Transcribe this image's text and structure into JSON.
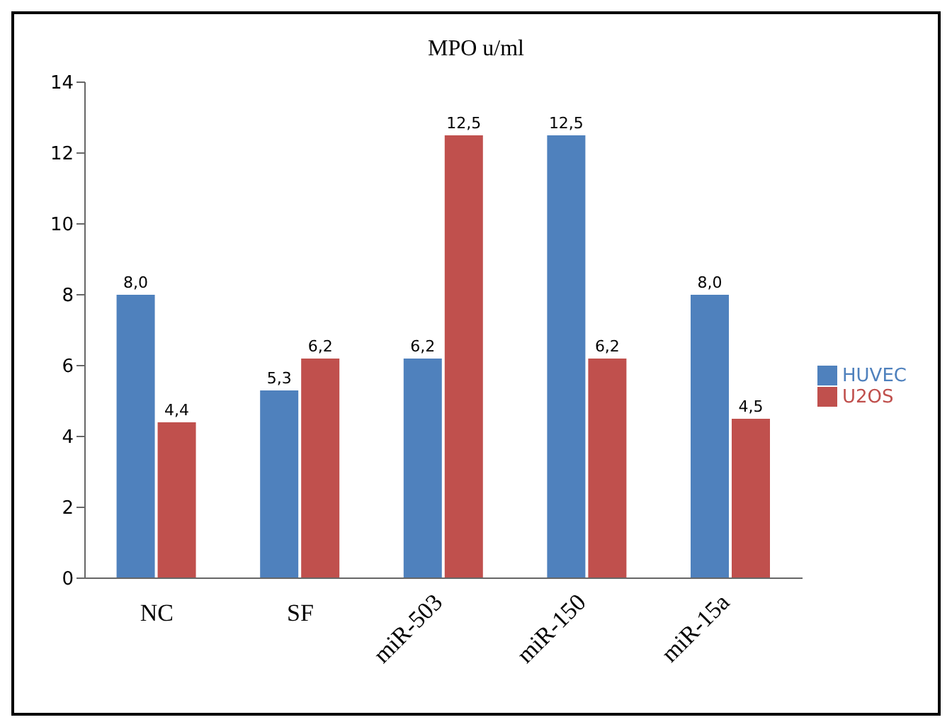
{
  "chart_data": {
    "type": "bar",
    "title": "MPO u/ml",
    "categories": [
      "NC",
      "SF",
      "miR-503",
      "miR-150",
      "miR-15a"
    ],
    "series": [
      {
        "name": "HUVEC",
        "color": "#4f81bd",
        "values": [
          8.0,
          5.3,
          6.2,
          12.5,
          8.0
        ],
        "value_labels": [
          "8,0",
          "5,3",
          "6,2",
          "12,5",
          "8,0"
        ]
      },
      {
        "name": "U2OS",
        "color": "#c0504d",
        "values": [
          4.4,
          6.2,
          12.5,
          6.2,
          4.5
        ],
        "value_labels": [
          "4,4",
          "6,2",
          "12,5",
          "6,2",
          "4,5"
        ]
      }
    ],
    "ylim": [
      0,
      14
    ],
    "yticks": [
      0,
      2,
      4,
      6,
      8,
      10,
      12,
      14
    ],
    "legend": "right"
  }
}
